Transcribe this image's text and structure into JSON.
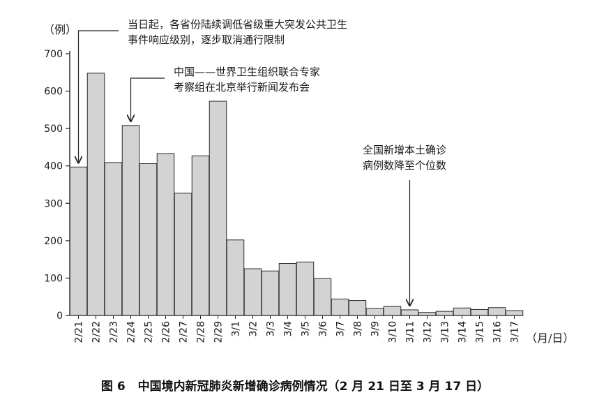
{
  "chart_data": {
    "type": "bar",
    "title": "中国境内新冠肺炎新增确诊病例情况（2 月 21 日至 3 月 17 日）",
    "figure_number": "图 6",
    "ylabel": "（例）",
    "xlabel": "（月/日）",
    "ylim": [
      0,
      700
    ],
    "yticks": [
      0,
      100,
      200,
      300,
      400,
      500,
      600,
      700
    ],
    "categories": [
      "2/21",
      "2/22",
      "2/23",
      "2/24",
      "2/25",
      "2/26",
      "2/27",
      "2/28",
      "2/29",
      "3/1",
      "3/2",
      "3/3",
      "3/4",
      "3/5",
      "3/6",
      "3/7",
      "3/8",
      "3/9",
      "3/10",
      "3/11",
      "3/12",
      "3/13",
      "3/14",
      "3/15",
      "3/16",
      "3/17"
    ],
    "values": [
      397,
      648,
      409,
      508,
      406,
      433,
      327,
      427,
      573,
      202,
      125,
      119,
      139,
      143,
      99,
      44,
      40,
      19,
      24,
      15,
      8,
      11,
      20,
      16,
      21,
      13
    ],
    "annotations": [
      {
        "target": "2/21",
        "lines": [
          "当日起，各省份陆续调低省级重大突发公共卫生",
          "事件响应级别，逐步取消通行限制"
        ]
      },
      {
        "target": "2/24",
        "lines": [
          "中国——世界卫生组织联合专家",
          "考察组在北京举行新闻发布会"
        ]
      },
      {
        "target": "3/11",
        "lines": [
          "全国新增本土确诊",
          "病例数降至个位数"
        ]
      }
    ],
    "colors": {
      "bar_fill": "#d3d3d3",
      "bar_stroke": "#2a2a2a",
      "axis": "#222222",
      "text": "#1a1a1a"
    },
    "grid": false
  }
}
